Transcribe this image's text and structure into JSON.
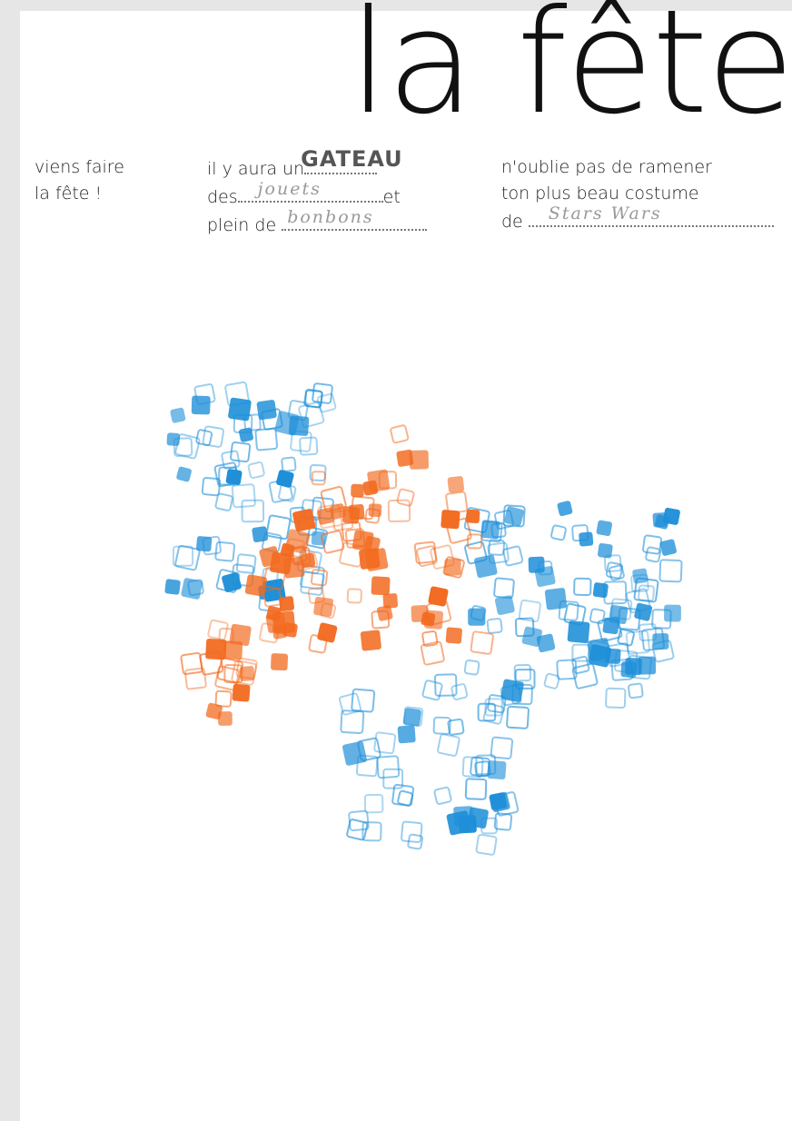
{
  "header": {
    "title": "la fête"
  },
  "columns": [
    {
      "lines": [
        {
          "text": "viens faire"
        },
        {
          "text": "la fête !"
        }
      ]
    },
    {
      "lines": [
        {
          "text": "il y aura un",
          "fill": "GATEAU"
        },
        {
          "text": "des",
          "fill": "jouets",
          "after": "et"
        },
        {
          "text": "plein de",
          "fill": "bonbons"
        }
      ]
    },
    {
      "lines": [
        {
          "text": "n'oublie pas de ramener"
        },
        {
          "text": "ton plus beau costume"
        },
        {
          "text": "de",
          "fill": "Stars Wars"
        }
      ]
    }
  ]
}
